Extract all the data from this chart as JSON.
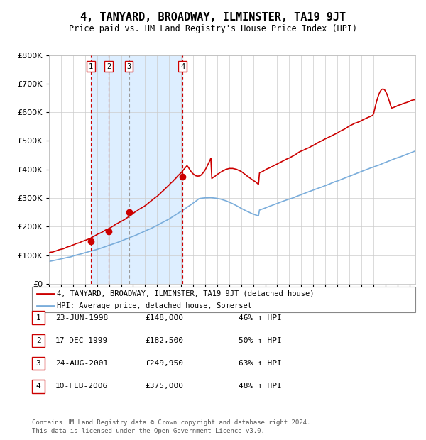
{
  "title": "4, TANYARD, BROADWAY, ILMINSTER, TA19 9JT",
  "subtitle": "Price paid vs. HM Land Registry's House Price Index (HPI)",
  "ylim": [
    0,
    800000
  ],
  "yticks": [
    0,
    100000,
    200000,
    300000,
    400000,
    500000,
    600000,
    700000,
    800000
  ],
  "ytick_labels": [
    "£0",
    "£100K",
    "£200K",
    "£300K",
    "£400K",
    "£500K",
    "£600K",
    "£700K",
    "£800K"
  ],
  "xlim_start": 1995.0,
  "xlim_end": 2025.5,
  "sales": [
    {
      "label": "1",
      "date_num": 1998.48,
      "price": 148000
    },
    {
      "label": "2",
      "date_num": 1999.97,
      "price": 182500
    },
    {
      "label": "3",
      "date_num": 2001.65,
      "price": 249950
    },
    {
      "label": "4",
      "date_num": 2006.12,
      "price": 375000
    }
  ],
  "sale_dates_info": [
    {
      "num": "1",
      "date": "23-JUN-1998",
      "price": "£148,000",
      "hpi": "46% ↑ HPI"
    },
    {
      "num": "2",
      "date": "17-DEC-1999",
      "price": "£182,500",
      "hpi": "50% ↑ HPI"
    },
    {
      "num": "3",
      "date": "24-AUG-2001",
      "price": "£249,950",
      "hpi": "63% ↑ HPI"
    },
    {
      "num": "4",
      "date": "10-FEB-2006",
      "price": "£375,000",
      "hpi": "48% ↑ HPI"
    }
  ],
  "red_line_color": "#cc0000",
  "blue_line_color": "#7aaddb",
  "shaded_region_color": "#ddeeff",
  "grid_color": "#cccccc",
  "background_color": "#ffffff",
  "legend_line1": "4, TANYARD, BROADWAY, ILMINSTER, TA19 9JT (detached house)",
  "legend_line2": "HPI: Average price, detached house, Somerset",
  "footer1": "Contains HM Land Registry data © Crown copyright and database right 2024.",
  "footer2": "This data is licensed under the Open Government Licence v3.0."
}
